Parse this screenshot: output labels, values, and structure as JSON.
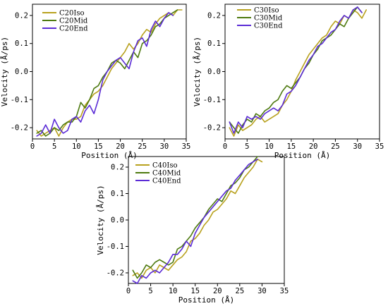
{
  "chart_data": [
    {
      "type": "line",
      "xlabel": "Position (Å)",
      "ylabel": "Velocity (Å/ps)",
      "xlim": [
        0,
        35
      ],
      "ylim": [
        -0.24,
        0.24
      ],
      "xticks": [
        0,
        5,
        10,
        15,
        20,
        25,
        30,
        35
      ],
      "yticks": [
        -0.2,
        -0.1,
        0.0,
        0.1,
        0.2
      ],
      "legend": "top-left",
      "series": [
        {
          "name": "C20Iso",
          "color": "#b8a11e",
          "x": [
            1,
            2,
            3,
            4,
            5,
            6,
            7,
            8,
            9,
            10,
            11,
            12,
            13,
            14,
            15,
            16,
            17,
            18,
            19,
            20,
            21,
            22,
            23,
            24,
            25,
            26,
            27,
            28,
            29,
            30,
            31,
            32,
            33,
            34
          ],
          "y": [
            -0.21,
            -0.23,
            -0.22,
            -0.21,
            -0.2,
            -0.23,
            -0.2,
            -0.18,
            -0.17,
            -0.17,
            -0.16,
            -0.12,
            -0.1,
            -0.08,
            -0.07,
            -0.05,
            -0.02,
            0.01,
            0.03,
            0.05,
            0.07,
            0.1,
            0.08,
            0.1,
            0.13,
            0.15,
            0.14,
            0.17,
            0.19,
            0.2,
            0.21,
            0.2,
            0.22,
            0.22
          ]
        },
        {
          "name": "C20Mid",
          "color": "#4e7a10",
          "x": [
            1,
            2,
            3,
            4,
            5,
            6,
            7,
            8,
            9,
            10,
            11,
            12,
            13,
            14,
            15,
            16,
            17,
            18,
            19,
            20,
            21,
            22,
            23,
            24,
            25,
            26,
            27,
            28,
            29,
            30,
            31,
            32,
            33
          ],
          "y": [
            -0.22,
            -0.21,
            -0.23,
            -0.22,
            -0.2,
            -0.21,
            -0.19,
            -0.18,
            -0.18,
            -0.16,
            -0.11,
            -0.13,
            -0.1,
            -0.06,
            -0.05,
            -0.02,
            0.0,
            0.03,
            0.04,
            0.03,
            0.01,
            0.04,
            0.07,
            0.05,
            0.1,
            0.11,
            0.13,
            0.16,
            0.17,
            0.19,
            0.2,
            0.21,
            0.22
          ]
        },
        {
          "name": "C20End",
          "color": "#5b2cd6",
          "x": [
            1,
            2,
            3,
            4,
            5,
            6,
            7,
            8,
            9,
            10,
            11,
            12,
            13,
            14,
            15,
            16,
            17,
            18,
            19,
            20,
            21,
            22,
            23,
            24,
            25,
            26,
            27,
            28,
            29,
            30,
            31,
            32
          ],
          "y": [
            -0.23,
            -0.22,
            -0.19,
            -0.22,
            -0.17,
            -0.2,
            -0.22,
            -0.21,
            -0.17,
            -0.16,
            -0.18,
            -0.14,
            -0.12,
            -0.15,
            -0.1,
            -0.03,
            0.0,
            0.02,
            0.04,
            0.05,
            0.03,
            0.01,
            0.07,
            0.11,
            0.12,
            0.09,
            0.15,
            0.18,
            0.16,
            0.19,
            0.21,
            0.2
          ]
        }
      ]
    },
    {
      "type": "line",
      "xlabel": "Position (Å)",
      "ylabel": "Velocity (Å/ps)",
      "xlim": [
        0,
        35
      ],
      "ylim": [
        -0.24,
        0.24
      ],
      "xticks": [
        0,
        5,
        10,
        15,
        20,
        25,
        30,
        35
      ],
      "yticks": [
        -0.2,
        -0.1,
        0.0,
        0.1,
        0.2
      ],
      "legend": "top-left",
      "series": [
        {
          "name": "C30Iso",
          "color": "#b8a11e",
          "x": [
            1,
            2,
            3,
            4,
            5,
            6,
            7,
            8,
            9,
            10,
            11,
            12,
            13,
            14,
            15,
            16,
            17,
            18,
            19,
            20,
            21,
            22,
            23,
            24,
            25,
            26,
            27,
            28,
            29,
            30,
            31,
            32
          ],
          "y": [
            -0.2,
            -0.23,
            -0.19,
            -0.21,
            -0.2,
            -0.19,
            -0.17,
            -0.16,
            -0.18,
            -0.17,
            -0.16,
            -0.15,
            -0.12,
            -0.1,
            -0.07,
            -0.03,
            0.0,
            0.03,
            0.06,
            0.08,
            0.1,
            0.12,
            0.13,
            0.16,
            0.18,
            0.17,
            0.2,
            0.19,
            0.22,
            0.21,
            0.19,
            0.22
          ]
        },
        {
          "name": "C30Mid",
          "color": "#4e7a10",
          "x": [
            1,
            2,
            3,
            4,
            5,
            6,
            7,
            8,
            9,
            10,
            11,
            12,
            13,
            14,
            15,
            16,
            17,
            18,
            19,
            20,
            21,
            22,
            23,
            24,
            25,
            26,
            27,
            28,
            29,
            30,
            31
          ],
          "y": [
            -0.18,
            -0.2,
            -0.22,
            -0.19,
            -0.17,
            -0.18,
            -0.15,
            -0.16,
            -0.14,
            -0.13,
            -0.11,
            -0.1,
            -0.07,
            -0.05,
            -0.06,
            -0.04,
            -0.02,
            0.01,
            0.03,
            0.06,
            0.08,
            0.11,
            0.12,
            0.13,
            0.15,
            0.17,
            0.16,
            0.19,
            0.21,
            0.23,
            0.21
          ]
        },
        {
          "name": "C30End",
          "color": "#5b2cd6",
          "x": [
            1,
            2,
            3,
            4,
            5,
            6,
            7,
            8,
            9,
            10,
            11,
            12,
            13,
            14,
            15,
            16,
            17,
            18,
            19,
            20,
            21,
            22,
            23,
            24,
            25,
            26,
            27,
            28,
            29,
            30,
            31
          ],
          "y": [
            -0.18,
            -0.22,
            -0.18,
            -0.2,
            -0.16,
            -0.17,
            -0.16,
            -0.17,
            -0.15,
            -0.14,
            -0.13,
            -0.14,
            -0.12,
            -0.08,
            -0.07,
            -0.05,
            -0.02,
            0.01,
            0.04,
            0.06,
            0.09,
            0.1,
            0.12,
            0.14,
            0.15,
            0.18,
            0.2,
            0.19,
            0.22,
            0.23,
            0.21
          ]
        }
      ]
    },
    {
      "type": "line",
      "xlabel": "Position (Å)",
      "ylabel": "Velocity (Å/ps)",
      "xlim": [
        0,
        35
      ],
      "ylim": [
        -0.24,
        0.24
      ],
      "xticks": [
        0,
        5,
        10,
        15,
        20,
        25,
        30,
        35
      ],
      "yticks": [
        -0.2,
        -0.1,
        0.0,
        0.1,
        0.2
      ],
      "legend": "top-left",
      "series": [
        {
          "name": "C40Iso",
          "color": "#b8a11e",
          "x": [
            1,
            2,
            3,
            4,
            5,
            6,
            7,
            8,
            9,
            10,
            11,
            12,
            13,
            14,
            15,
            16,
            17,
            18,
            19,
            20,
            21,
            22,
            23,
            24,
            25,
            26,
            27,
            28,
            29,
            30
          ],
          "y": [
            -0.21,
            -0.2,
            -0.22,
            -0.19,
            -0.18,
            -0.2,
            -0.17,
            -0.18,
            -0.19,
            -0.17,
            -0.15,
            -0.14,
            -0.12,
            -0.08,
            -0.07,
            -0.05,
            -0.02,
            0.0,
            0.03,
            0.04,
            0.06,
            0.08,
            0.11,
            0.1,
            0.13,
            0.16,
            0.18,
            0.2,
            0.23,
            0.22
          ]
        },
        {
          "name": "C40Mid",
          "color": "#4e7a10",
          "x": [
            1,
            2,
            3,
            4,
            5,
            6,
            7,
            8,
            9,
            10,
            11,
            12,
            13,
            14,
            15,
            16,
            17,
            18,
            19,
            20,
            21,
            22,
            23,
            24,
            25,
            26,
            27,
            28,
            29
          ],
          "y": [
            -0.19,
            -0.22,
            -0.2,
            -0.17,
            -0.18,
            -0.16,
            -0.15,
            -0.16,
            -0.17,
            -0.16,
            -0.11,
            -0.1,
            -0.08,
            -0.06,
            -0.03,
            -0.01,
            0.01,
            0.04,
            0.06,
            0.08,
            0.07,
            0.1,
            0.13,
            0.14,
            0.16,
            0.19,
            0.2,
            0.22,
            0.24
          ]
        },
        {
          "name": "C40End",
          "color": "#5b2cd6",
          "x": [
            1,
            2,
            3,
            4,
            5,
            6,
            7,
            8,
            9,
            10,
            11,
            12,
            13,
            14,
            15,
            16,
            17,
            18,
            19,
            20,
            21,
            22,
            23,
            24,
            25,
            26,
            27,
            28,
            29
          ],
          "y": [
            -0.23,
            -0.24,
            -0.21,
            -0.22,
            -0.2,
            -0.19,
            -0.2,
            -0.18,
            -0.16,
            -0.13,
            -0.13,
            -0.11,
            -0.08,
            -0.1,
            -0.05,
            -0.02,
            0.01,
            0.03,
            0.05,
            0.07,
            0.09,
            0.11,
            0.12,
            0.15,
            0.17,
            0.19,
            0.21,
            0.22,
            0.23
          ]
        }
      ]
    }
  ]
}
